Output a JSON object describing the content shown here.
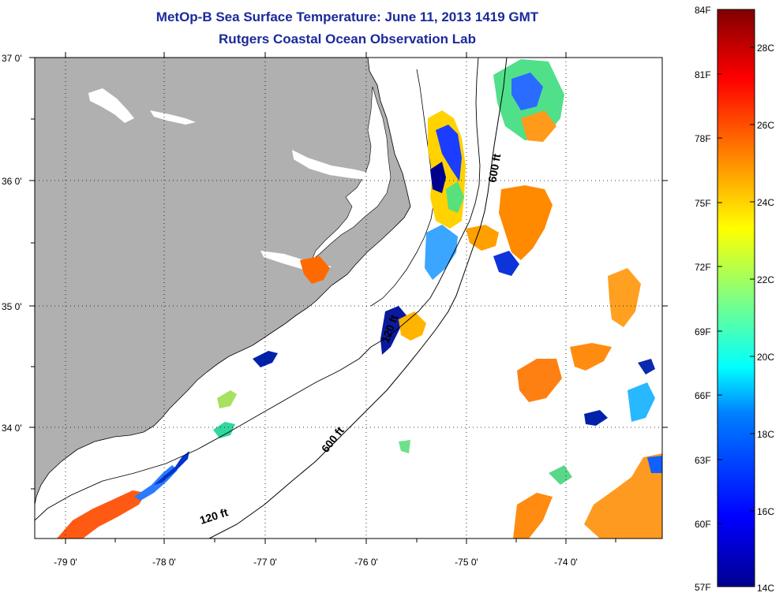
{
  "header": {
    "title": "MetOp-B Sea Surface Temperature:  June 11, 2013 1419 GMT",
    "subtitle": "Rutgers Coastal Ocean Observation Lab"
  },
  "map": {
    "lat_labels": [
      "37 0'",
      "36 0'",
      "35 0'",
      "34 0'"
    ],
    "lon_labels": [
      "-79 0'",
      "-78 0'",
      "-77 0'",
      "-76 0'",
      "-75 0'",
      "-74 0'"
    ],
    "contour_labels": {
      "c600_north": "600 ft",
      "c600_south": "600 ft",
      "c120": "120 ft",
      "c120_mid": "120 ft"
    },
    "colors": {
      "land": "#b0b0b0",
      "ocean": "#ffffff"
    }
  },
  "colorbar": {
    "f_labels": [
      "84F",
      "81F",
      "78F",
      "75F",
      "72F",
      "69F",
      "66F",
      "63F",
      "60F",
      "57F"
    ],
    "c_labels": [
      "28C",
      "26C",
      "24C",
      "22C",
      "20C",
      "18C",
      "16C",
      "14C"
    ],
    "colormap": [
      "#00008f",
      "#0000ff",
      "#0080ff",
      "#00ffff",
      "#80ff80",
      "#ffff00",
      "#ff8000",
      "#ff0000",
      "#800000"
    ]
  }
}
